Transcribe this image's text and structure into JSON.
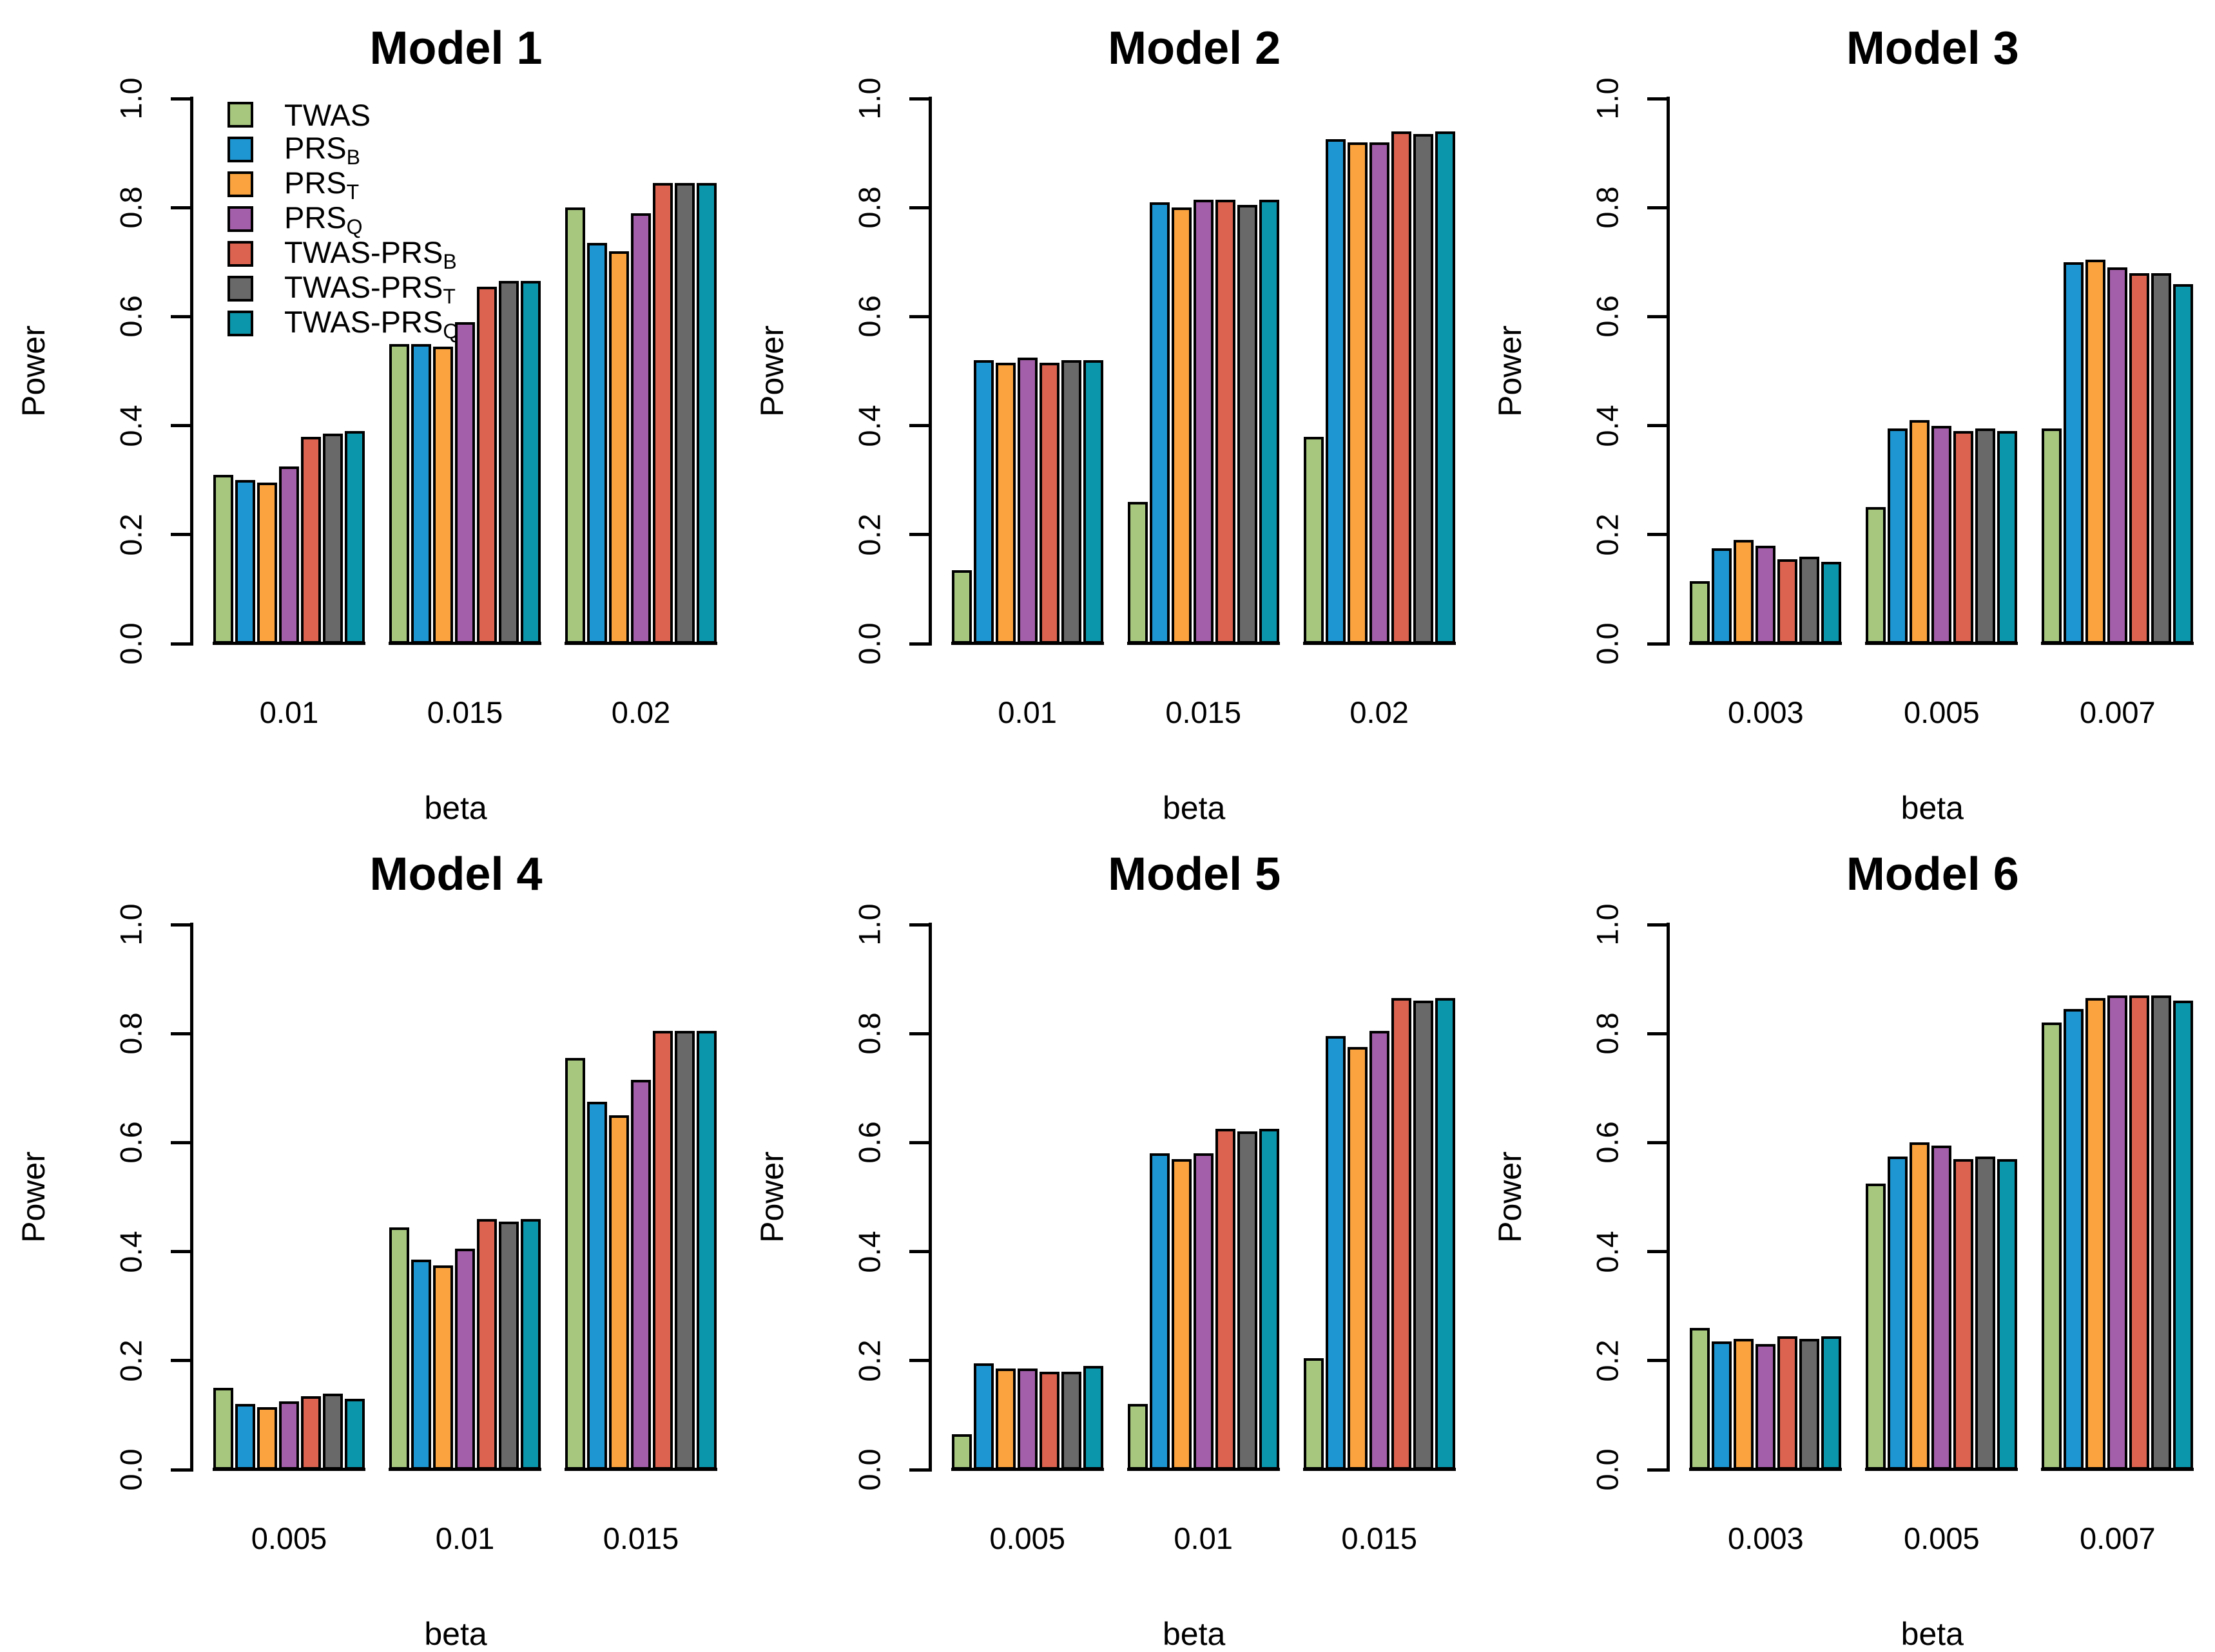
{
  "figure": {
    "background": "#ffffff",
    "rows": 2,
    "cols": 3
  },
  "palette": {
    "TWAS": "#A7C77F",
    "PRS_B": "#1E96D2",
    "PRS_T": "#FBA43F",
    "PRS_Q": "#A35FA9",
    "TWAS-PRS_B": "#DB6350",
    "TWAS-PRS_T": "#696969",
    "TWAS-PRS_Q": "#0C96AB",
    "bar_border": "#000000",
    "text": "#000000"
  },
  "legend": {
    "position": "top-left-of-first-panel",
    "entries": [
      {
        "name": "TWAS",
        "main": "TWAS",
        "sub": ""
      },
      {
        "name": "PRS_B",
        "main": "PRS",
        "sub": "B"
      },
      {
        "name": "PRS_T",
        "main": "PRS",
        "sub": "T"
      },
      {
        "name": "PRS_Q",
        "main": "PRS",
        "sub": "Q"
      },
      {
        "name": "TWAS-PRS_B",
        "main": "TWAS-PRS",
        "sub": "B"
      },
      {
        "name": "TWAS-PRS_T",
        "main": "TWAS-PRS",
        "sub": "T"
      },
      {
        "name": "TWAS-PRS_Q",
        "main": "TWAS-PRS",
        "sub": "Q"
      }
    ]
  },
  "chart_data": [
    {
      "type": "bar",
      "title": "Model 1",
      "xlabel": "beta",
      "ylabel": "Power",
      "ylim": [
        0,
        1.0
      ],
      "yticks": [
        0,
        0.2,
        0.4,
        0.6,
        0.8,
        1.0
      ],
      "ytick_labels": [
        "0.0",
        "0.2",
        "0.4",
        "0.6",
        "0.8",
        "1.0"
      ],
      "grid": false,
      "legend_in_panel": true,
      "categories": [
        "0.01",
        "0.015",
        "0.02"
      ],
      "series": [
        {
          "name": "TWAS",
          "values": [
            0.31,
            0.55,
            0.8
          ]
        },
        {
          "name": "PRS_B",
          "values": [
            0.3,
            0.55,
            0.735
          ]
        },
        {
          "name": "PRS_T",
          "values": [
            0.295,
            0.545,
            0.72
          ]
        },
        {
          "name": "PRS_Q",
          "values": [
            0.325,
            0.59,
            0.79
          ]
        },
        {
          "name": "TWAS-PRS_B",
          "values": [
            0.38,
            0.655,
            0.845
          ]
        },
        {
          "name": "TWAS-PRS_T",
          "values": [
            0.385,
            0.665,
            0.845
          ]
        },
        {
          "name": "TWAS-PRS_Q",
          "values": [
            0.39,
            0.665,
            0.845
          ]
        }
      ]
    },
    {
      "type": "bar",
      "title": "Model 2",
      "xlabel": "beta",
      "ylabel": "Power",
      "ylim": [
        0,
        1.0
      ],
      "yticks": [
        0,
        0.2,
        0.4,
        0.6,
        0.8,
        1.0
      ],
      "ytick_labels": [
        "0.0",
        "0.2",
        "0.4",
        "0.6",
        "0.8",
        "1.0"
      ],
      "grid": false,
      "legend_in_panel": false,
      "categories": [
        "0.01",
        "0.015",
        "0.02"
      ],
      "series": [
        {
          "name": "TWAS",
          "values": [
            0.135,
            0.26,
            0.38
          ]
        },
        {
          "name": "PRS_B",
          "values": [
            0.52,
            0.81,
            0.925
          ]
        },
        {
          "name": "PRS_T",
          "values": [
            0.515,
            0.8,
            0.92
          ]
        },
        {
          "name": "PRS_Q",
          "values": [
            0.525,
            0.815,
            0.92
          ]
        },
        {
          "name": "TWAS-PRS_B",
          "values": [
            0.515,
            0.815,
            0.94
          ]
        },
        {
          "name": "TWAS-PRS_T",
          "values": [
            0.52,
            0.805,
            0.935
          ]
        },
        {
          "name": "TWAS-PRS_Q",
          "values": [
            0.52,
            0.815,
            0.94
          ]
        }
      ]
    },
    {
      "type": "bar",
      "title": "Model 3",
      "xlabel": "beta",
      "ylabel": "Power",
      "ylim": [
        0,
        1.0
      ],
      "yticks": [
        0,
        0.2,
        0.4,
        0.6,
        0.8,
        1.0
      ],
      "ytick_labels": [
        "0.0",
        "0.2",
        "0.4",
        "0.6",
        "0.8",
        "1.0"
      ],
      "grid": false,
      "legend_in_panel": false,
      "categories": [
        "0.003",
        "0.005",
        "0.007"
      ],
      "series": [
        {
          "name": "TWAS",
          "values": [
            0.115,
            0.25,
            0.395
          ]
        },
        {
          "name": "PRS_B",
          "values": [
            0.175,
            0.395,
            0.7
          ]
        },
        {
          "name": "PRS_T",
          "values": [
            0.19,
            0.41,
            0.705
          ]
        },
        {
          "name": "PRS_Q",
          "values": [
            0.18,
            0.4,
            0.69
          ]
        },
        {
          "name": "TWAS-PRS_B",
          "values": [
            0.155,
            0.39,
            0.68
          ]
        },
        {
          "name": "TWAS-PRS_T",
          "values": [
            0.16,
            0.395,
            0.68
          ]
        },
        {
          "name": "TWAS-PRS_Q",
          "values": [
            0.15,
            0.39,
            0.66
          ]
        }
      ]
    },
    {
      "type": "bar",
      "title": "Model 4",
      "xlabel": "beta",
      "ylabel": "Power",
      "ylim": [
        0,
        1.0
      ],
      "yticks": [
        0,
        0.2,
        0.4,
        0.6,
        0.8,
        1.0
      ],
      "ytick_labels": [
        "0.0",
        "0.2",
        "0.4",
        "0.6",
        "0.8",
        "1.0"
      ],
      "grid": false,
      "legend_in_panel": false,
      "categories": [
        "0.005",
        "0.01",
        "0.015"
      ],
      "series": [
        {
          "name": "TWAS",
          "values": [
            0.15,
            0.445,
            0.755
          ]
        },
        {
          "name": "PRS_B",
          "values": [
            0.12,
            0.385,
            0.675
          ]
        },
        {
          "name": "PRS_T",
          "values": [
            0.115,
            0.375,
            0.65
          ]
        },
        {
          "name": "PRS_Q",
          "values": [
            0.125,
            0.405,
            0.715
          ]
        },
        {
          "name": "TWAS-PRS_B",
          "values": [
            0.135,
            0.46,
            0.805
          ]
        },
        {
          "name": "TWAS-PRS_T",
          "values": [
            0.14,
            0.455,
            0.805
          ]
        },
        {
          "name": "TWAS-PRS_Q",
          "values": [
            0.13,
            0.46,
            0.805
          ]
        }
      ]
    },
    {
      "type": "bar",
      "title": "Model 5",
      "xlabel": "beta",
      "ylabel": "Power",
      "ylim": [
        0,
        1.0
      ],
      "yticks": [
        0,
        0.2,
        0.4,
        0.6,
        0.8,
        1.0
      ],
      "ytick_labels": [
        "0.0",
        "0.2",
        "0.4",
        "0.6",
        "0.8",
        "1.0"
      ],
      "grid": false,
      "legend_in_panel": false,
      "categories": [
        "0.005",
        "0.01",
        "0.015"
      ],
      "series": [
        {
          "name": "TWAS",
          "values": [
            0.065,
            0.12,
            0.205
          ]
        },
        {
          "name": "PRS_B",
          "values": [
            0.195,
            0.58,
            0.795
          ]
        },
        {
          "name": "PRS_T",
          "values": [
            0.185,
            0.57,
            0.775
          ]
        },
        {
          "name": "PRS_Q",
          "values": [
            0.185,
            0.58,
            0.805
          ]
        },
        {
          "name": "TWAS-PRS_B",
          "values": [
            0.18,
            0.625,
            0.865
          ]
        },
        {
          "name": "TWAS-PRS_T",
          "values": [
            0.18,
            0.62,
            0.86
          ]
        },
        {
          "name": "TWAS-PRS_Q",
          "values": [
            0.19,
            0.625,
            0.865
          ]
        }
      ]
    },
    {
      "type": "bar",
      "title": "Model 6",
      "xlabel": "beta",
      "ylabel": "Power",
      "ylim": [
        0,
        1.0
      ],
      "yticks": [
        0,
        0.2,
        0.4,
        0.6,
        0.8,
        1.0
      ],
      "ytick_labels": [
        "0.0",
        "0.2",
        "0.4",
        "0.6",
        "0.8",
        "1.0"
      ],
      "grid": false,
      "legend_in_panel": false,
      "categories": [
        "0.003",
        "0.005",
        "0.007"
      ],
      "series": [
        {
          "name": "TWAS",
          "values": [
            0.26,
            0.525,
            0.82
          ]
        },
        {
          "name": "PRS_B",
          "values": [
            0.235,
            0.575,
            0.845
          ]
        },
        {
          "name": "PRS_T",
          "values": [
            0.24,
            0.6,
            0.865
          ]
        },
        {
          "name": "PRS_Q",
          "values": [
            0.23,
            0.595,
            0.87
          ]
        },
        {
          "name": "TWAS-PRS_B",
          "values": [
            0.245,
            0.57,
            0.87
          ]
        },
        {
          "name": "TWAS-PRS_T",
          "values": [
            0.24,
            0.575,
            0.87
          ]
        },
        {
          "name": "TWAS-PRS_Q",
          "values": [
            0.245,
            0.57,
            0.86
          ]
        }
      ]
    }
  ]
}
